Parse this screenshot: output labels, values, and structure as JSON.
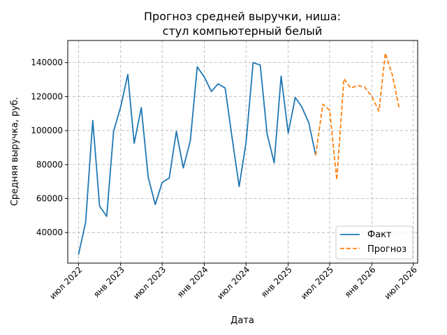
{
  "chart_data": {
    "type": "line",
    "title": [
      "Прогноз средней выручки, ниша:",
      "стул компьютерный белый"
    ],
    "xlabel": "Дата",
    "ylabel": "Средняя выручка, руб.",
    "grid": true,
    "legend_position": "bottom-right",
    "xlim": [
      "2022-05-15",
      "2026-07-20"
    ],
    "ylim": [
      22000,
      153000
    ],
    "y_ticks": [
      40000,
      60000,
      80000,
      100000,
      120000,
      140000
    ],
    "x_ticks": [
      {
        "date": "2022-07-01",
        "label": "июл 2022"
      },
      {
        "date": "2023-01-01",
        "label": "янв 2023"
      },
      {
        "date": "2023-07-01",
        "label": "июл 2023"
      },
      {
        "date": "2024-01-01",
        "label": "янв 2024"
      },
      {
        "date": "2024-07-01",
        "label": "июл 2024"
      },
      {
        "date": "2025-01-01",
        "label": "янв 2025"
      },
      {
        "date": "2025-07-01",
        "label": "июл 2025"
      },
      {
        "date": "2026-01-01",
        "label": "янв 2026"
      },
      {
        "date": "2026-07-01",
        "label": "июл 2026"
      }
    ],
    "series": [
      {
        "name": "Факт",
        "color": "#1f77b4",
        "style": "solid",
        "x": [
          "2022-07-01",
          "2022-08-01",
          "2022-09-01",
          "2022-10-01",
          "2022-11-01",
          "2022-12-01",
          "2023-01-01",
          "2023-02-01",
          "2023-03-01",
          "2023-04-01",
          "2023-05-01",
          "2023-06-01",
          "2023-07-01",
          "2023-08-01",
          "2023-09-01",
          "2023-10-01",
          "2023-11-01",
          "2023-12-01",
          "2024-01-01",
          "2024-02-01",
          "2024-03-01",
          "2024-04-01",
          "2024-05-01",
          "2024-06-01",
          "2024-07-01",
          "2024-08-01",
          "2024-09-01",
          "2024-10-01",
          "2024-11-01",
          "2024-12-01",
          "2025-01-01",
          "2025-02-01",
          "2025-03-01",
          "2025-04-01",
          "2025-05-01"
        ],
        "y": [
          27000,
          46000,
          106000,
          55500,
          49500,
          99500,
          114000,
          133000,
          92500,
          113500,
          72500,
          56500,
          69500,
          72000,
          99500,
          78000,
          94000,
          137500,
          131500,
          123000,
          127500,
          125000,
          96000,
          67000,
          93000,
          140000,
          138500,
          98000,
          81000,
          132000,
          98500,
          119500,
          114000,
          104500,
          85500
        ]
      },
      {
        "name": "Прогноз",
        "color": "#ff7f0e",
        "style": "dashed",
        "x": [
          "2025-05-01",
          "2025-06-01",
          "2025-07-01",
          "2025-08-01",
          "2025-09-01",
          "2025-10-01",
          "2025-11-01",
          "2025-12-01",
          "2026-01-01",
          "2026-02-01",
          "2026-03-01",
          "2026-04-01",
          "2026-05-01"
        ],
        "y": [
          85500,
          115500,
          112000,
          71000,
          130500,
          125000,
          126500,
          125500,
          120000,
          111500,
          145500,
          132500,
          112500
        ]
      }
    ]
  }
}
